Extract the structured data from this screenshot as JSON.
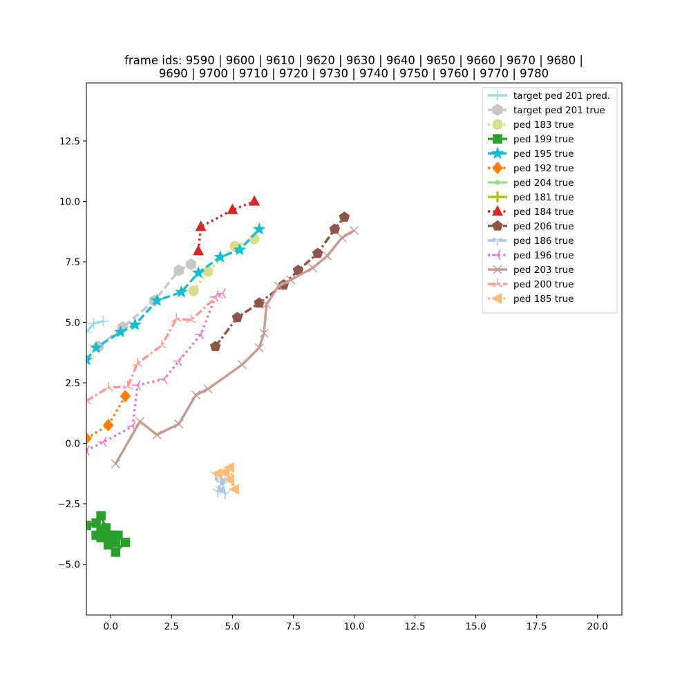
{
  "chart_data": {
    "type": "line",
    "title_line1": "frame ids: 9590 | 9600 | 9610 | 9620 | 9630 | 9640 | 9650 | 9660 | 9670 | 9680 |",
    "title_line2": "9690 | 9700 | 9710 | 9720 | 9730 | 9740 | 9750 | 9760 | 9770 | 9780",
    "xlabel": "",
    "ylabel": "",
    "xlim": [
      -1.0,
      21.0
    ],
    "ylim": [
      -7.1,
      14.9
    ],
    "xticks": [
      0.0,
      2.5,
      5.0,
      7.5,
      10.0,
      12.5,
      15.0,
      17.5,
      20.0
    ],
    "xtick_labels": [
      "0.0",
      "2.5",
      "5.0",
      "7.5",
      "10.0",
      "12.5",
      "15.0",
      "17.5",
      "20.0"
    ],
    "yticks": [
      -5.0,
      -2.5,
      0.0,
      2.5,
      5.0,
      7.5,
      10.0,
      12.5
    ],
    "ytick_labels": [
      "−5.0",
      "−2.5",
      "0.0",
      "2.5",
      "5.0",
      "7.5",
      "10.0",
      "12.5"
    ],
    "grid": false,
    "legend_position": "upper right",
    "series": [
      {
        "name": "target ped 201 pred.",
        "color": "#9edae5",
        "linestyle": "solid",
        "marker": "plus",
        "x": [
          -1.0,
          -0.7,
          -0.3
        ],
        "y": [
          4.6,
          4.95,
          5.05
        ]
      },
      {
        "name": "target ped 201 true",
        "color": "#c7c7c7",
        "linestyle": "dashed",
        "marker": "hexagon",
        "x": [
          -0.5,
          0.5,
          1.8,
          2.8,
          3.3
        ],
        "y": [
          4.0,
          4.8,
          5.9,
          7.15,
          7.4
        ]
      },
      {
        "name": "ped 183 true",
        "color": "#dbdb8d",
        "linestyle": "dotted",
        "marker": "circle",
        "x": [
          3.4,
          4.0,
          5.1,
          5.9
        ],
        "y": [
          6.3,
          7.1,
          8.15,
          8.45
        ]
      },
      {
        "name": "ped 199 true",
        "color": "#2ca02c",
        "linestyle": "solid",
        "marker": "square",
        "x": [
          -1.0,
          -0.6,
          -0.4,
          -0.2,
          0.0,
          0.2,
          0.3,
          0.6,
          0.2,
          -0.1,
          -0.4,
          -0.6,
          -0.4,
          -0.1
        ],
        "y": [
          -3.4,
          -3.3,
          -3.0,
          -3.5,
          -3.8,
          -4.1,
          -3.8,
          -4.1,
          -4.5,
          -4.2,
          -3.9,
          -3.8,
          -3.6,
          -3.9
        ]
      },
      {
        "name": "ped 195 true",
        "color": "#17becf",
        "linestyle": "dashed",
        "marker": "star",
        "x": [
          -1.0,
          -0.6,
          0.4,
          1.0,
          1.9,
          2.9,
          3.6,
          4.5,
          5.3,
          6.1
        ],
        "y": [
          3.45,
          3.95,
          4.6,
          4.9,
          5.9,
          6.25,
          7.05,
          7.7,
          8.0,
          8.85
        ]
      },
      {
        "name": "ped 192 true",
        "color": "#ff7f0e",
        "linestyle": "dotted",
        "marker": "diamond",
        "x": [
          -1.0,
          -0.1,
          0.6
        ],
        "y": [
          0.2,
          0.75,
          1.95
        ]
      },
      {
        "name": "ped 204 true",
        "color": "#98df8a",
        "linestyle": "solid",
        "marker": "point",
        "x": [],
        "y": []
      },
      {
        "name": "ped 181 true",
        "color": "#bcbd22",
        "linestyle": "solid",
        "marker": "plus-filled",
        "x": [],
        "y": []
      },
      {
        "name": "ped 184 true",
        "color": "#d62728",
        "linestyle": "dotted",
        "marker": "triangle-up",
        "x": [
          3.6,
          3.7,
          5.0,
          5.9
        ],
        "y": [
          7.95,
          8.95,
          9.65,
          10.0
        ]
      },
      {
        "name": "ped 206 true",
        "color": "#8c564b",
        "linestyle": "dashdot",
        "marker": "pentagon",
        "x": [
          4.3,
          5.2,
          6.1,
          7.1,
          7.7,
          8.5,
          9.2,
          9.6
        ],
        "y": [
          4.0,
          5.2,
          5.8,
          6.55,
          7.15,
          7.85,
          8.85,
          9.35
        ]
      },
      {
        "name": "ped 186 true",
        "color": "#aec7e8",
        "linestyle": "dashed",
        "marker": "tri-down",
        "x": [
          4.3,
          4.5,
          4.7,
          4.5,
          4.8,
          4.6,
          4.4,
          4.7
        ],
        "y": [
          -1.3,
          -1.9,
          -2.1,
          -1.4,
          -1.2,
          -1.7,
          -2.0,
          -1.3
        ]
      },
      {
        "name": "ped 196 true",
        "color": "#e377c2",
        "linestyle": "dotted",
        "marker": "tri-left",
        "x": [
          -1.0,
          -0.3,
          0.9,
          1.1,
          2.2,
          2.8,
          3.7,
          4.3,
          4.6
        ],
        "y": [
          -0.3,
          0.05,
          0.7,
          2.4,
          2.65,
          3.4,
          4.5,
          6.05,
          6.2
        ]
      },
      {
        "name": "ped 203 true",
        "color": "#c49c94",
        "linestyle": "solid",
        "marker": "x",
        "x": [
          0.2,
          1.2,
          1.9,
          2.8,
          3.5,
          4.0,
          5.4,
          6.1,
          6.3,
          6.4,
          6.9,
          7.4,
          8.3,
          8.9,
          9.5,
          10.0
        ],
        "y": [
          -0.85,
          0.9,
          0.35,
          0.8,
          2.0,
          2.25,
          3.25,
          3.95,
          4.55,
          5.75,
          6.5,
          6.75,
          7.25,
          7.75,
          8.5,
          8.8
        ]
      },
      {
        "name": "ped 200 true",
        "color": "#ff9896",
        "linestyle": "dashdot",
        "marker": "tri-up",
        "x": [
          -1.0,
          -0.1,
          0.7,
          1.1,
          2.1,
          2.7,
          3.3,
          4.4
        ],
        "y": [
          1.75,
          2.3,
          2.35,
          3.3,
          4.05,
          5.15,
          5.1,
          6.1
        ]
      },
      {
        "name": "ped 185 true",
        "color": "#ffbb78",
        "linestyle": "dotted",
        "marker": "triangle-left",
        "x": [
          4.4,
          4.7,
          4.9,
          5.1,
          4.9
        ],
        "y": [
          -1.25,
          -1.2,
          -1.5,
          -1.9,
          -1.0
        ]
      }
    ]
  }
}
